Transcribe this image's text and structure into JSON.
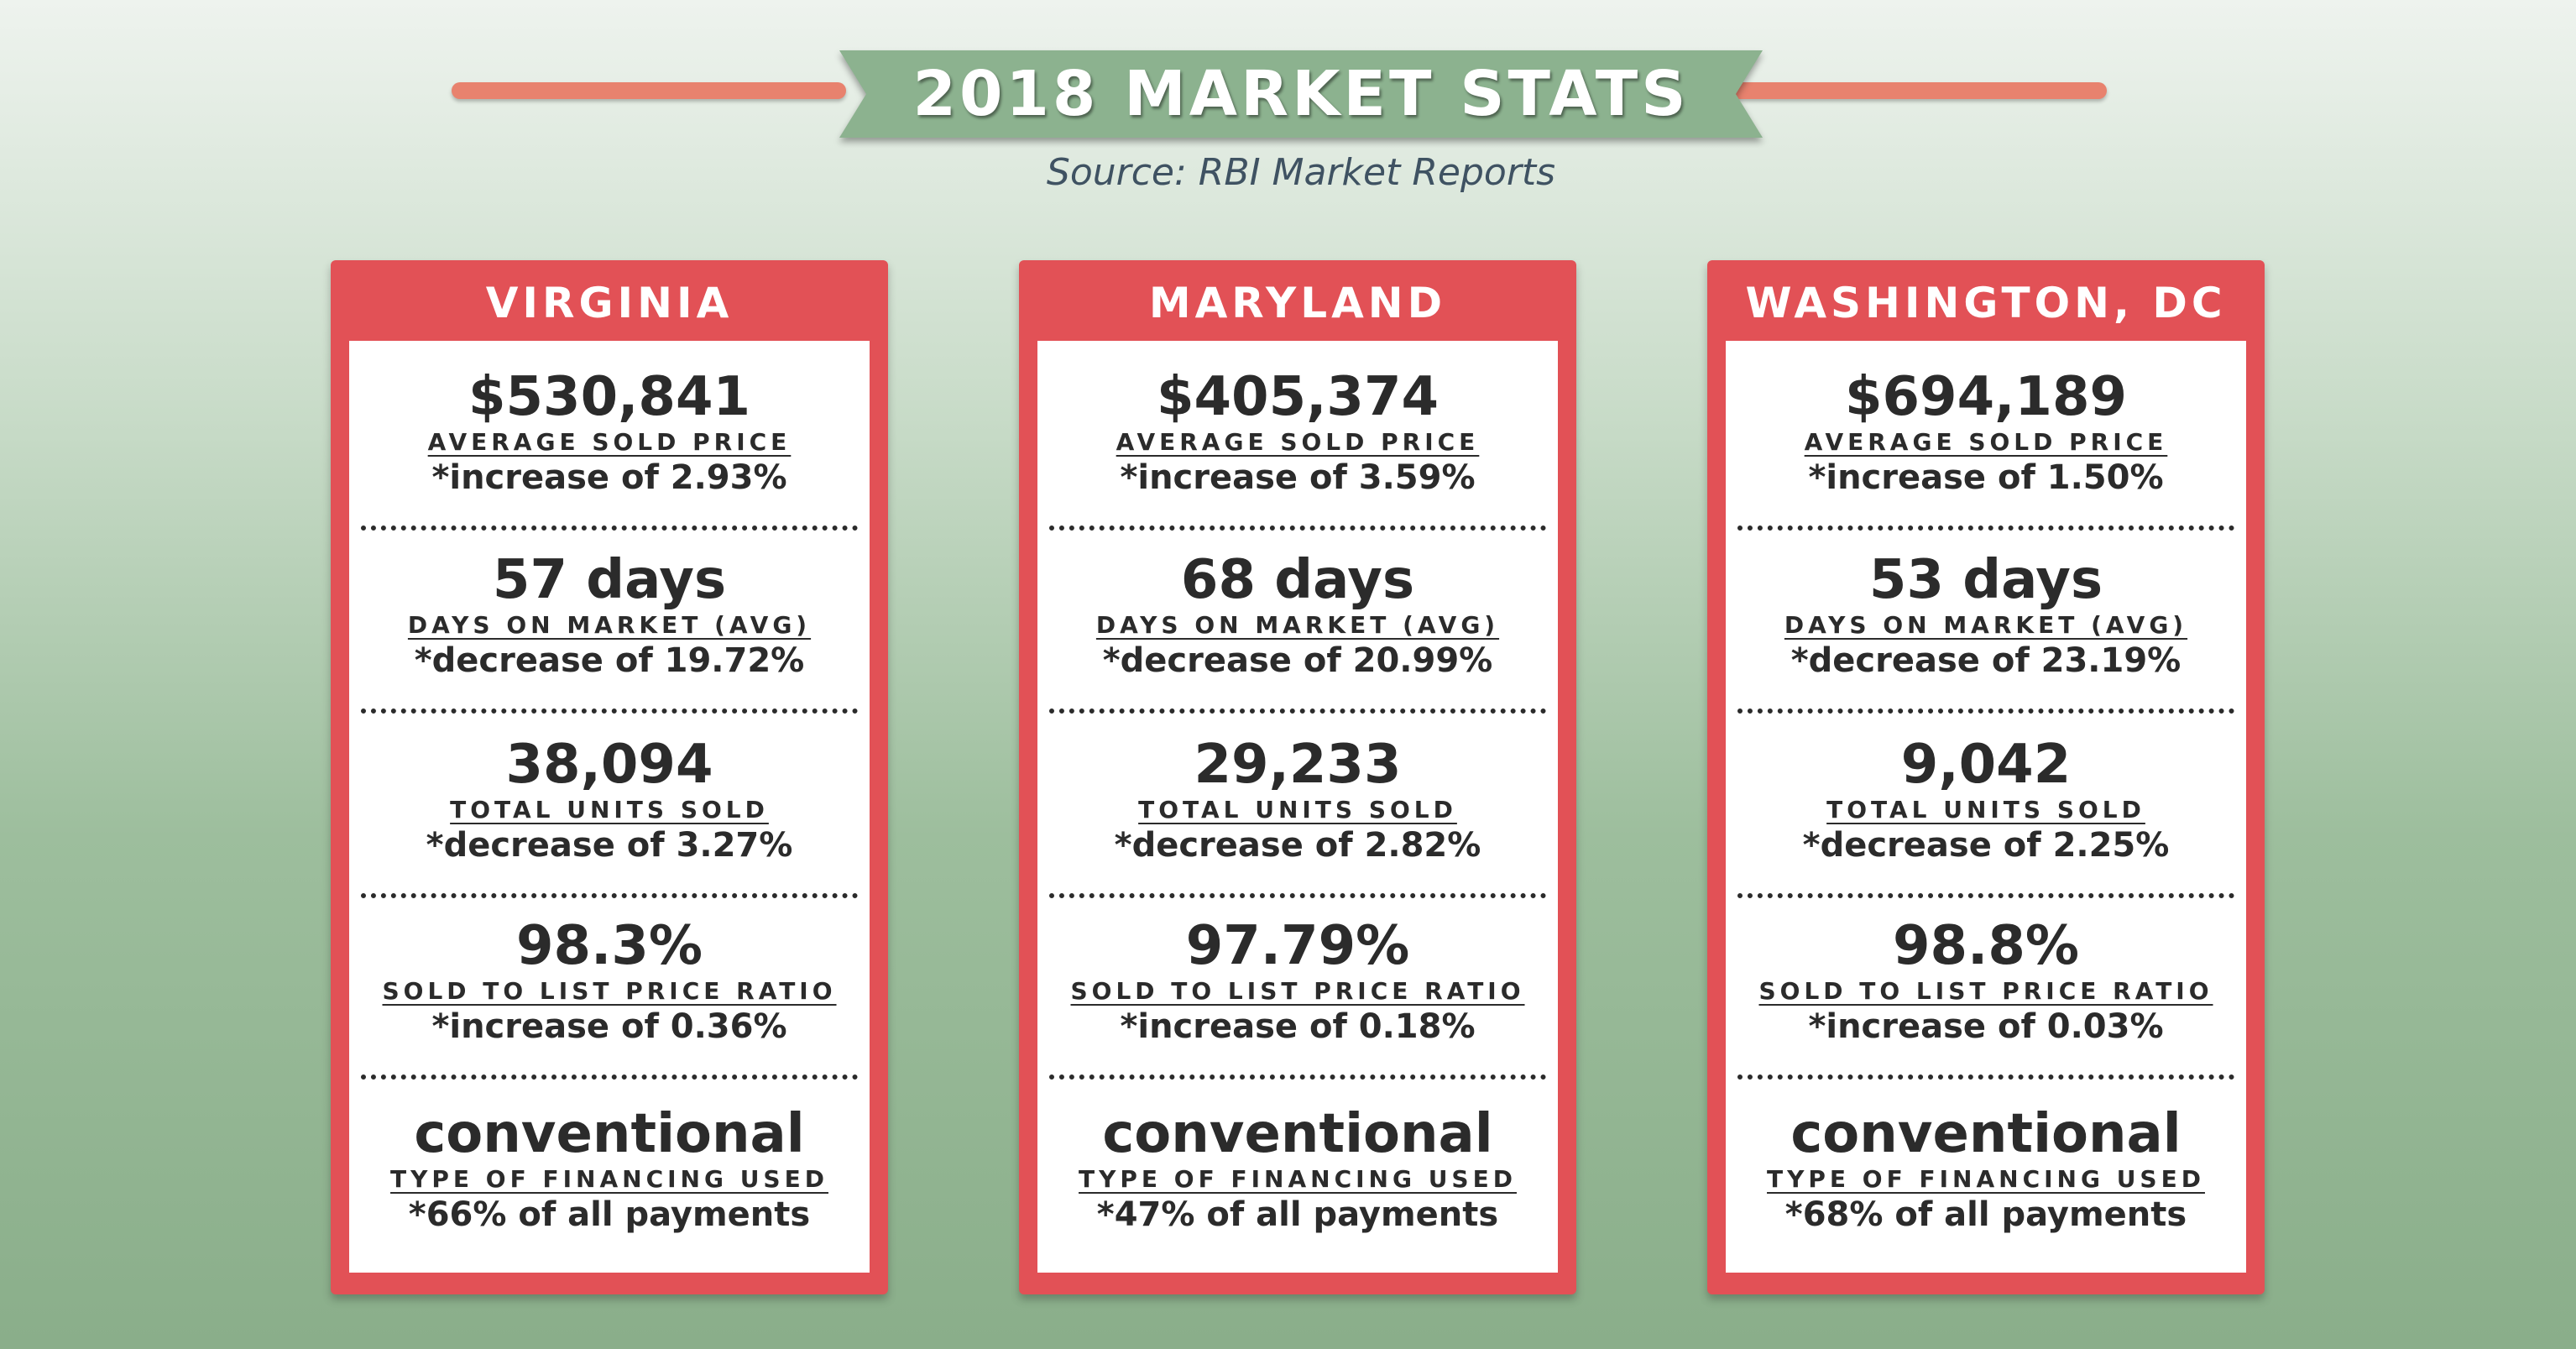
{
  "header": {
    "title": "2018 MARKET STATS",
    "source": "Source: RBI Market Reports"
  },
  "colors": {
    "card_red": "#e25156",
    "banner_green": "#8cb28f",
    "accent_line": "#e8826e",
    "text_dark": "#2b2b2b",
    "source_text": "#3f5262"
  },
  "cards": [
    {
      "title": "VIRGINIA",
      "stats": [
        {
          "value": "$530,841",
          "label": "AVERAGE SOLD PRICE",
          "change": "*increase of 2.93%"
        },
        {
          "value": "57 days",
          "label": "DAYS ON MARKET (AVG)",
          "change": "*decrease of 19.72%"
        },
        {
          "value": "38,094",
          "label": "TOTAL UNITS SOLD",
          "change": "*decrease of 3.27%"
        },
        {
          "value": "98.3%",
          "label": "SOLD TO LIST PRICE RATIO",
          "change": "*increase of 0.36%"
        },
        {
          "value": "conventional",
          "label": "TYPE OF FINANCING USED",
          "change": "*66% of all payments"
        }
      ]
    },
    {
      "title": "MARYLAND",
      "stats": [
        {
          "value": "$405,374",
          "label": "AVERAGE SOLD PRICE",
          "change": "*increase of 3.59%"
        },
        {
          "value": "68 days",
          "label": "DAYS ON MARKET (AVG)",
          "change": "*decrease of 20.99%"
        },
        {
          "value": "29,233",
          "label": "TOTAL UNITS SOLD",
          "change": "*decrease of 2.82%"
        },
        {
          "value": "97.79%",
          "label": "SOLD TO LIST PRICE RATIO",
          "change": "*increase of 0.18%"
        },
        {
          "value": "conventional",
          "label": "TYPE OF FINANCING USED",
          "change": "*47% of all payments"
        }
      ]
    },
    {
      "title": "WASHINGTON, DC",
      "stats": [
        {
          "value": "$694,189",
          "label": "AVERAGE SOLD PRICE",
          "change": "*increase of 1.50%"
        },
        {
          "value": "53 days",
          "label": "DAYS ON MARKET (AVG)",
          "change": "*decrease of 23.19%"
        },
        {
          "value": "9,042",
          "label": "TOTAL UNITS SOLD",
          "change": "*decrease of 2.25%"
        },
        {
          "value": "98.8%",
          "label": "SOLD TO LIST PRICE RATIO",
          "change": "*increase of 0.03%"
        },
        {
          "value": "conventional",
          "label": "TYPE OF FINANCING USED",
          "change": "*68% of all payments"
        }
      ]
    }
  ]
}
